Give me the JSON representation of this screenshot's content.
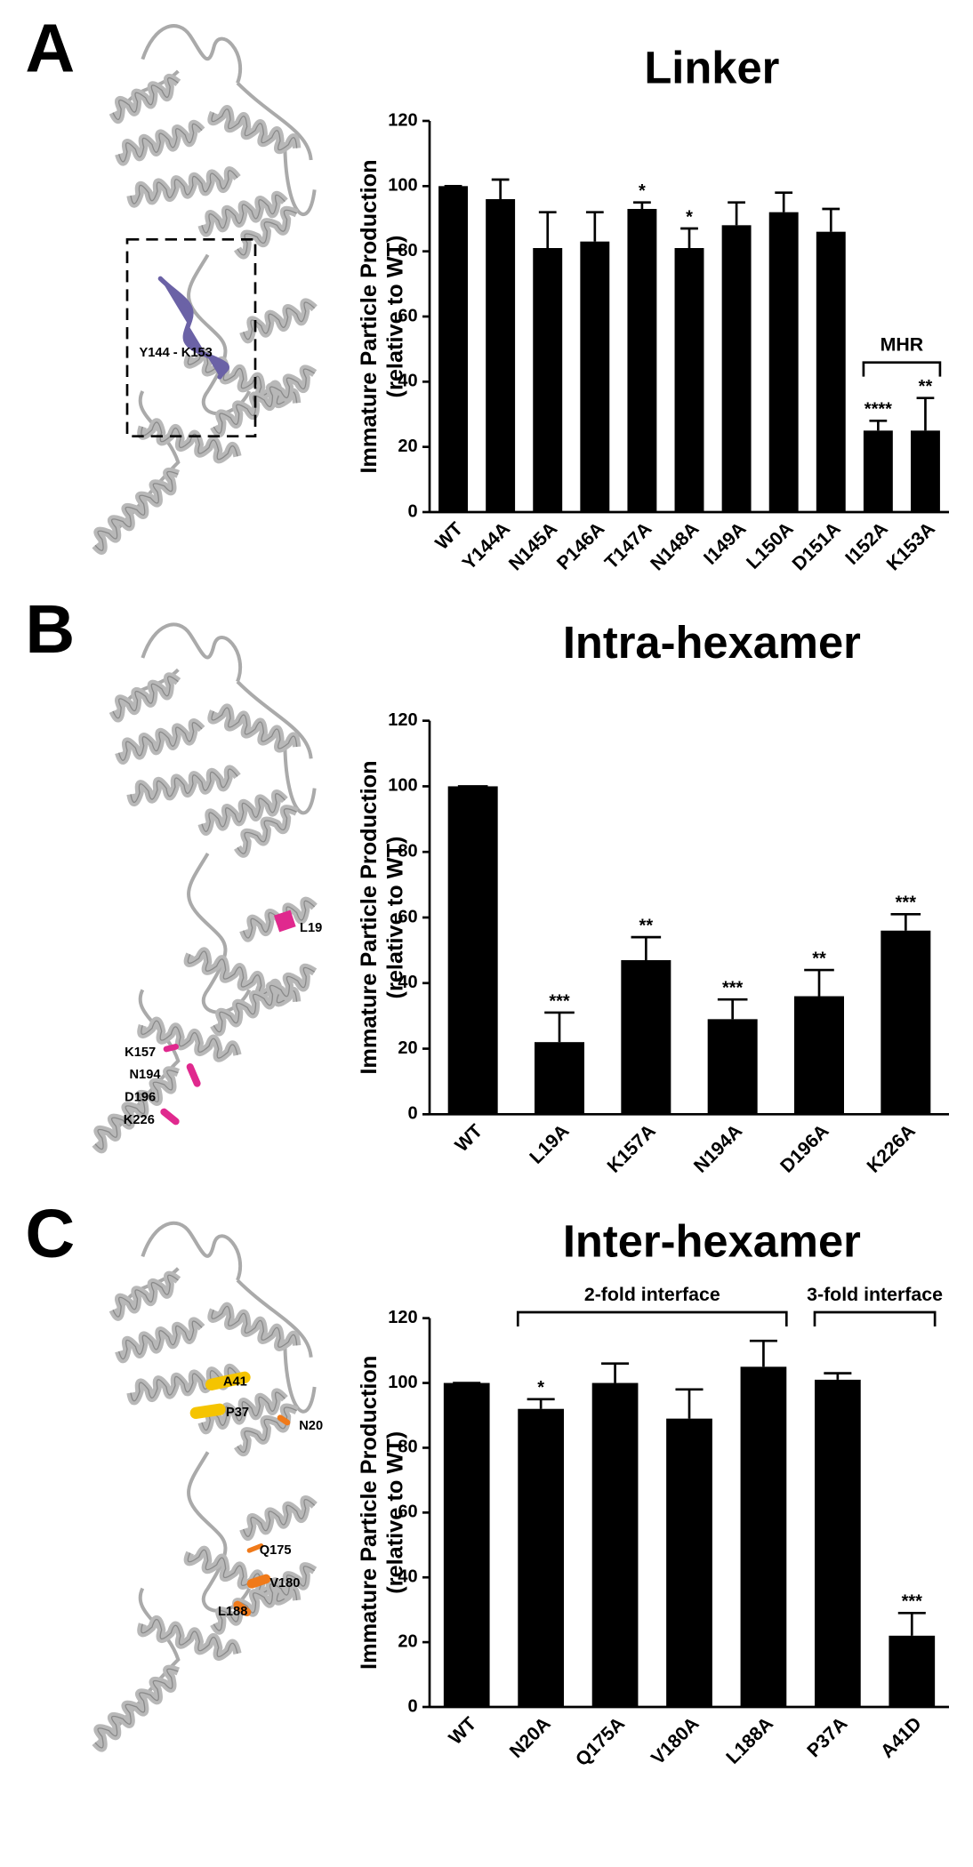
{
  "chart_data": [
    {
      "type": "bar",
      "panel": "A",
      "title": "Linker",
      "y_label": [
        "Immature Particle Production",
        "(relative to WT)"
      ],
      "categories": [
        "WT",
        "Y144A",
        "N145A",
        "P146A",
        "T147A",
        "N148A",
        "I149A",
        "L150A",
        "D151A",
        "I152A",
        "K153A"
      ],
      "values": [
        100,
        96,
        81,
        83,
        93,
        81,
        88,
        92,
        86,
        25,
        25
      ],
      "errors": [
        0,
        6,
        11,
        9,
        2,
        6,
        7,
        6,
        7,
        3,
        10
      ],
      "significance": [
        null,
        null,
        null,
        null,
        "*",
        "*",
        null,
        null,
        null,
        "****",
        "**"
      ],
      "brackets": [
        {
          "label": "MHR",
          "categories": [
            "I152A",
            "K153A"
          ]
        }
      ],
      "structure_labels": [
        "Y144 - K153"
      ],
      "color": "#000000",
      "ylim": [
        0,
        120
      ],
      "yticks": [
        0,
        20,
        40,
        60,
        80,
        100,
        120
      ],
      "grid": false
    },
    {
      "type": "bar",
      "panel": "B",
      "title": "Intra-hexamer",
      "y_label": [
        "Immature Particle Production",
        "(relative to WT)"
      ],
      "categories": [
        "WT",
        "L19A",
        "K157A",
        "N194A",
        "D196A",
        "K226A"
      ],
      "values": [
        100,
        22,
        47,
        29,
        36,
        56
      ],
      "errors": [
        0,
        9,
        7,
        6,
        8,
        5
      ],
      "significance": [
        null,
        "***",
        "**",
        "***",
        "**",
        "***"
      ],
      "brackets": [],
      "structure_labels": [
        "L19",
        "K157",
        "N194",
        "D196",
        "K226"
      ],
      "color": "#000000",
      "ylim": [
        0,
        120
      ],
      "yticks": [
        0,
        20,
        40,
        60,
        80,
        100,
        120
      ],
      "grid": false
    },
    {
      "type": "bar",
      "panel": "C",
      "title": "Inter-hexamer",
      "y_label": [
        "Immature Particle Production",
        "(relative to WT)"
      ],
      "categories": [
        "WT",
        "N20A",
        "Q175A",
        "V180A",
        "L188A",
        "P37A",
        "A41D"
      ],
      "values": [
        100,
        92,
        100,
        89,
        105,
        101,
        22
      ],
      "errors": [
        0,
        3,
        6,
        9,
        8,
        2,
        7
      ],
      "significance": [
        null,
        "*",
        null,
        null,
        null,
        null,
        "***"
      ],
      "brackets": [
        {
          "label": "2-fold interface",
          "categories": [
            "N20A",
            "L188A"
          ]
        },
        {
          "label": "3-fold interface",
          "categories": [
            "P37A",
            "A41D"
          ]
        }
      ],
      "structure_labels": [
        "A41",
        "P37",
        "N20",
        "Q175",
        "V180",
        "L188"
      ],
      "color": "#000000",
      "ylim": [
        0,
        120
      ],
      "yticks": [
        0,
        20,
        40,
        60,
        80,
        100,
        120
      ],
      "grid": false
    }
  ]
}
